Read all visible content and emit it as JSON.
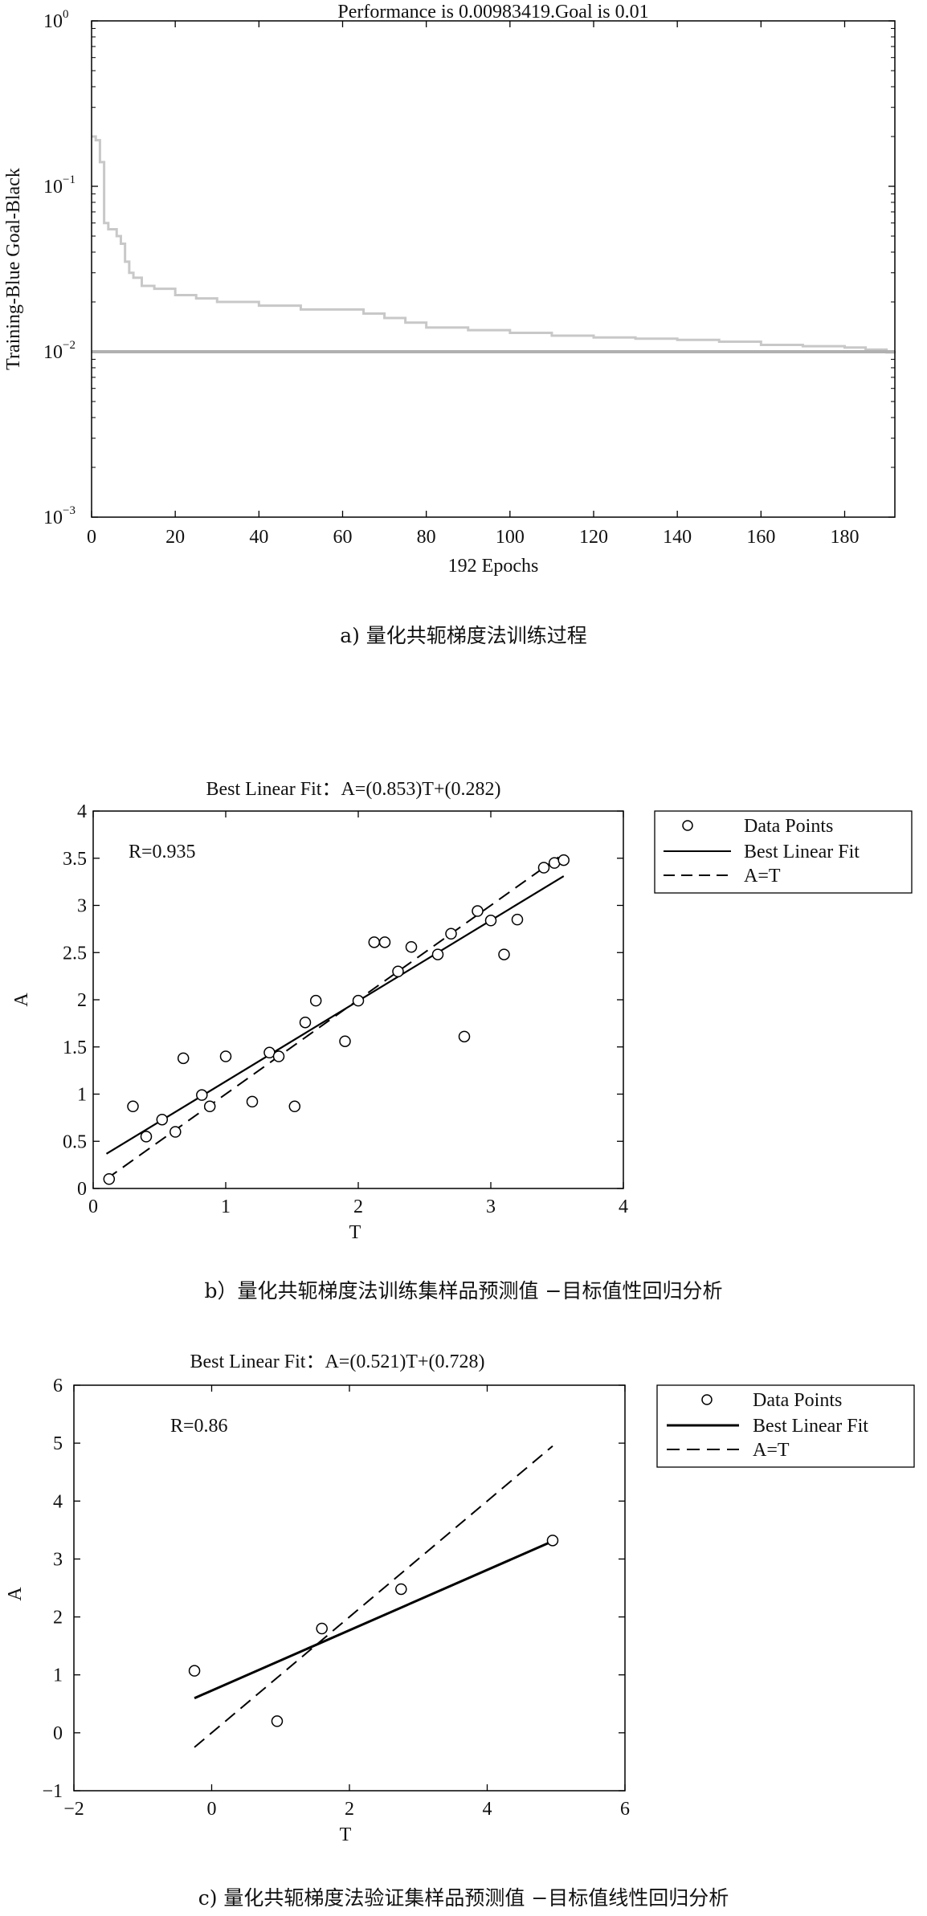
{
  "chart_data": [
    {
      "type": "line",
      "title": "Performance is 0.00983419.Goal is 0.01",
      "xlabel": "192 Epochs",
      "ylabel": "Training-Blue Goal-Black",
      "xlim": [
        0,
        192
      ],
      "ylim": [
        0.001,
        1
      ],
      "yscale": "log",
      "xticks": [
        "0",
        "20",
        "40",
        "60",
        "80",
        "100",
        "120",
        "140",
        "160",
        "180"
      ],
      "yticks": [
        {
          "base": "10",
          "exp": "0"
        },
        {
          "base": "10",
          "exp": "−1"
        },
        {
          "base": "10",
          "exp": "−2"
        },
        {
          "base": "10",
          "exp": "−3"
        }
      ],
      "series": [
        {
          "id": "training",
          "color": "#c8c8c8",
          "x": [
            0,
            1,
            2,
            3,
            4,
            6,
            7,
            8,
            9,
            10,
            12,
            15,
            20,
            25,
            30,
            40,
            50,
            60,
            65,
            70,
            75,
            80,
            90,
            100,
            110,
            120,
            130,
            140,
            150,
            160,
            170,
            180,
            185,
            190,
            192
          ],
          "y": [
            0.2,
            0.19,
            0.14,
            0.06,
            0.055,
            0.05,
            0.045,
            0.035,
            0.03,
            0.028,
            0.025,
            0.024,
            0.022,
            0.021,
            0.02,
            0.019,
            0.018,
            0.018,
            0.017,
            0.016,
            0.015,
            0.014,
            0.0135,
            0.013,
            0.0125,
            0.0122,
            0.012,
            0.0118,
            0.0115,
            0.011,
            0.0108,
            0.0106,
            0.0103,
            0.0099,
            0.00983419
          ]
        },
        {
          "id": "goal",
          "color": "#b0b0b0",
          "x": [
            0,
            192
          ],
          "y": [
            0.01,
            0.01
          ]
        }
      ]
    },
    {
      "type": "scatter",
      "title": "Best Linear Fit：A=(0.853)T+(0.282)",
      "xlabel": "T",
      "ylabel": "A",
      "xlim": [
        0,
        4
      ],
      "ylim": [
        0,
        4
      ],
      "xticks": [
        "0",
        "1",
        "2",
        "3",
        "4"
      ],
      "yticks": [
        "0",
        "0.5",
        "1",
        "1.5",
        "2",
        "2.5",
        "3",
        "3.5",
        "4"
      ],
      "annotation": "R=0.935",
      "legend": [
        "Data Points",
        "Best Linear Fit",
        "A=T"
      ],
      "legend_position": "outside-right",
      "points": [
        [
          0.12,
          0.1
        ],
        [
          0.3,
          0.87
        ],
        [
          0.4,
          0.55
        ],
        [
          0.52,
          0.73
        ],
        [
          0.62,
          0.6
        ],
        [
          0.68,
          1.38
        ],
        [
          0.82,
          0.99
        ],
        [
          0.88,
          0.87
        ],
        [
          1.0,
          1.4
        ],
        [
          1.2,
          0.92
        ],
        [
          1.33,
          1.44
        ],
        [
          1.4,
          1.4
        ],
        [
          1.52,
          0.87
        ],
        [
          1.6,
          1.76
        ],
        [
          1.68,
          1.99
        ],
        [
          1.9,
          1.56
        ],
        [
          2.0,
          1.99
        ],
        [
          2.12,
          2.61
        ],
        [
          2.2,
          2.61
        ],
        [
          2.3,
          2.3
        ],
        [
          2.4,
          2.56
        ],
        [
          2.6,
          2.48
        ],
        [
          2.7,
          2.7
        ],
        [
          2.8,
          1.61
        ],
        [
          2.9,
          2.94
        ],
        [
          3.0,
          2.84
        ],
        [
          3.1,
          2.48
        ],
        [
          3.2,
          2.85
        ],
        [
          3.4,
          3.4
        ],
        [
          3.48,
          3.45
        ],
        [
          3.55,
          3.48
        ]
      ],
      "fit_line": {
        "x": [
          0.1,
          3.55
        ],
        "y": [
          0.3673,
          3.3102
        ]
      },
      "identity_line": {
        "x": [
          0.1,
          3.55
        ],
        "y": [
          0.1,
          3.55
        ]
      }
    },
    {
      "type": "scatter",
      "title": "Best Linear Fit：A=(0.521)T+(0.728)",
      "xlabel": "T",
      "ylabel": "A",
      "xlim": [
        -2,
        6
      ],
      "ylim": [
        -1,
        6
      ],
      "xticks": [
        "−2",
        "0",
        "2",
        "4",
        "6"
      ],
      "yticks": [
        "−1",
        "0",
        "1",
        "2",
        "3",
        "4",
        "5",
        "6"
      ],
      "annotation": "R=0.86",
      "legend": [
        "Data Points",
        "Best Linear Fit",
        "A=T"
      ],
      "legend_position": "outside-right",
      "points": [
        [
          -0.25,
          1.07
        ],
        [
          0.95,
          0.2
        ],
        [
          1.6,
          1.8
        ],
        [
          2.75,
          2.48
        ],
        [
          4.95,
          3.32
        ]
      ],
      "fit_line": {
        "x": [
          -0.25,
          4.95
        ],
        "y": [
          0.598,
          3.307
        ]
      },
      "identity_line": {
        "x": [
          -0.25,
          4.95
        ],
        "y": [
          -0.25,
          4.95
        ]
      }
    }
  ],
  "captions": {
    "a": "a) 量化共轭梯度法训练过程",
    "b": "b）量化共轭梯度法训练集样品预测值 −目标值性回归分析",
    "c": "c) 量化共轭梯度法验证集样品预测值 −目标值线性回归分析"
  }
}
